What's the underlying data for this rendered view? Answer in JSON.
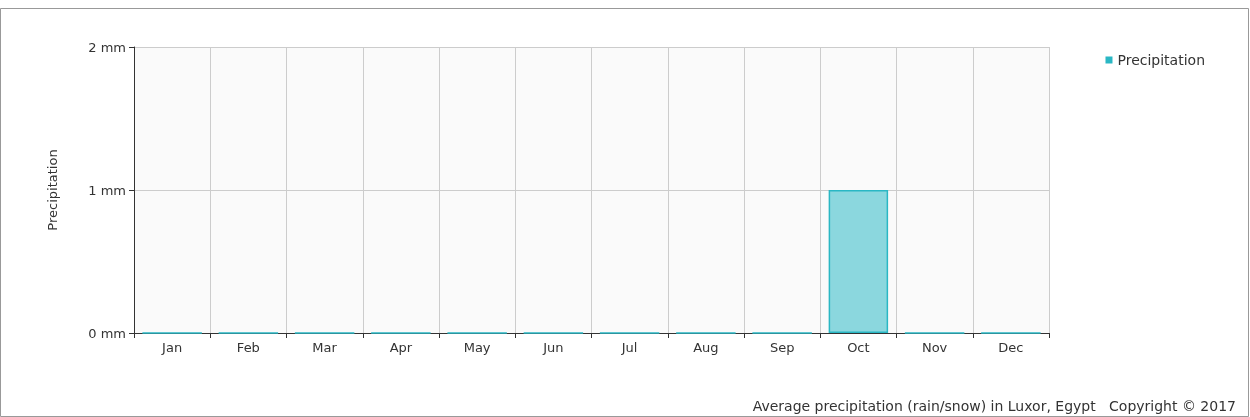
{
  "chart_data": {
    "type": "bar",
    "ylabel": "Precipitation",
    "categories": [
      "Jan",
      "Feb",
      "Mar",
      "Apr",
      "May",
      "Jun",
      "Jul",
      "Aug",
      "Sep",
      "Oct",
      "Nov",
      "Dec"
    ],
    "series": [
      {
        "name": "Precipitation",
        "color": "#2ab7c4",
        "values": [
          0,
          0,
          0,
          0,
          0,
          0,
          0,
          0,
          0,
          1,
          0,
          0
        ]
      }
    ],
    "ylim": [
      0,
      2
    ],
    "yticks": [
      {
        "value": 0,
        "label": "0 mm"
      },
      {
        "value": 1,
        "label": "1 mm"
      },
      {
        "value": 2,
        "label": "2 mm"
      }
    ],
    "grid": true,
    "legend": "top right",
    "annotations": [
      "Average precipitation (rain/snow) in Luxor, Egypt",
      "Copyright © 2017"
    ]
  }
}
